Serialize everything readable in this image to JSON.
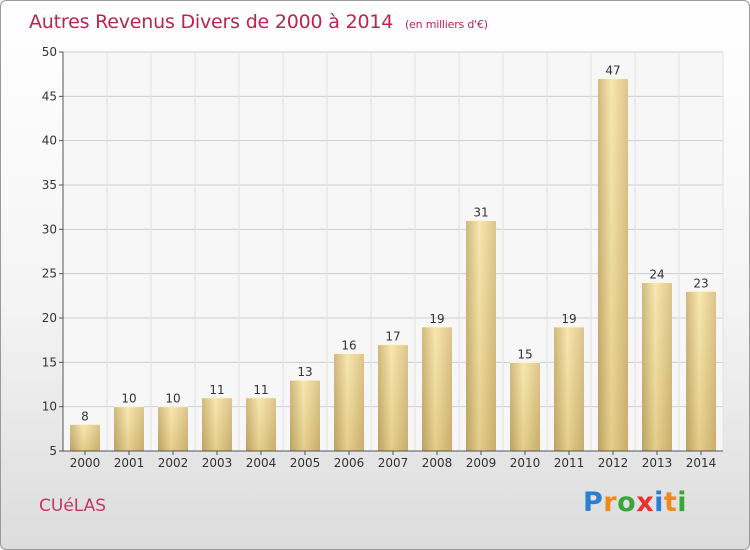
{
  "header": {
    "title": "Autres Revenus Divers de 2000 à 2014",
    "subtitle": "(en milliers d'€)"
  },
  "footer": {
    "commune": "CUéLAS",
    "logo": "Proxiti"
  },
  "colors": {
    "title": "#b8254f",
    "bar_light": "#f7e3a0",
    "bar_dark": "#c9ad6a"
  },
  "chart_data": {
    "type": "bar",
    "title": "Autres Revenus Divers de 2000 à 2014",
    "subtitle": "(en milliers d'€)",
    "xlabel": "",
    "ylabel": "",
    "categories": [
      "2000",
      "2001",
      "2002",
      "2003",
      "2004",
      "2005",
      "2006",
      "2007",
      "2008",
      "2009",
      "2010",
      "2011",
      "2012",
      "2013",
      "2014"
    ],
    "values": [
      8,
      10,
      10,
      11,
      11,
      13,
      16,
      17,
      19,
      31,
      15,
      19,
      47,
      24,
      23
    ],
    "ylim": [
      5,
      50
    ],
    "yticks": [
      5,
      10,
      15,
      20,
      25,
      30,
      35,
      40,
      45,
      50
    ],
    "grid": true
  }
}
